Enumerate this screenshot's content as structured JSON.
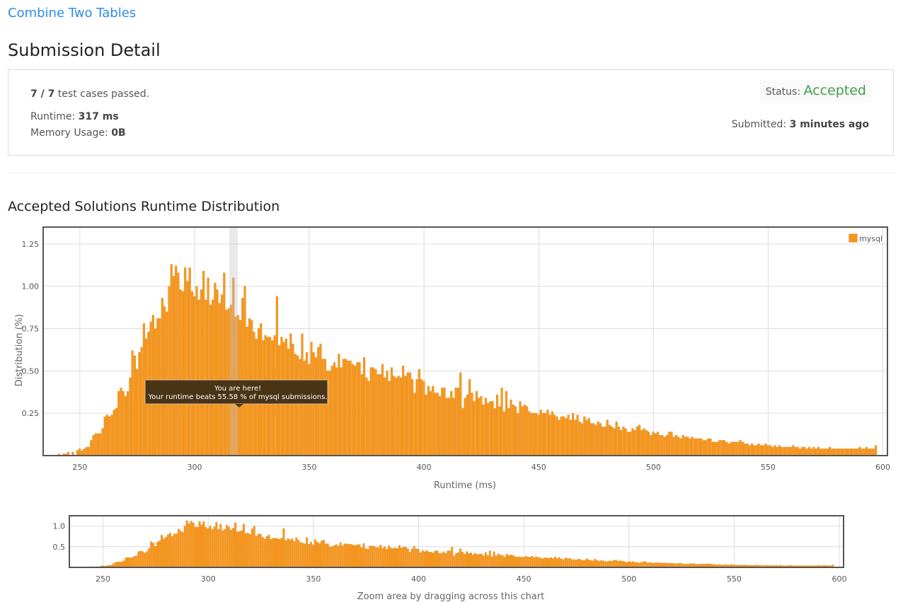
{
  "problem": {
    "title": "Combine Two Tables"
  },
  "page": {
    "title": "Submission Detail"
  },
  "summary": {
    "tests": "7 / 7",
    "tests_suffix": " test cases passed.",
    "runtime_label": "Runtime: ",
    "runtime_value": "317 ms",
    "memory_label": "Memory Usage: ",
    "memory_value": "0B",
    "status_label": "Status: ",
    "status_value": "Accepted",
    "submitted_label": "Submitted: ",
    "submitted_value": "3 minutes ago"
  },
  "section": {
    "title": "Accepted Solutions Runtime Distribution"
  },
  "colors": {
    "bar": "#f7981d",
    "bar_border": "#e8891a",
    "accent": "#2d8ce8",
    "accepted": "#43a047"
  },
  "chart_data": {
    "type": "bar",
    "xlabel": "Runtime (ms)",
    "ylabel": "Distribution (%)",
    "xlim": [
      234,
      602
    ],
    "ylim": [
      0,
      1.35
    ],
    "xticks": [
      250,
      300,
      350,
      400,
      450,
      500,
      550,
      600
    ],
    "yticks": [
      0.25,
      0.5,
      0.75,
      1.0,
      1.25
    ],
    "ytick_labels": [
      "0.25",
      "0.50",
      "0.75",
      "1.00",
      "1.25"
    ],
    "grid": true,
    "legend_position": "top-right",
    "series": [
      {
        "name": "mysql",
        "bin_start": 241,
        "bin_width": 1,
        "values": [
          0.01,
          0.0,
          0.01,
          0.01,
          0.02,
          0.0,
          0.02,
          0.0,
          0.03,
          0.04,
          0.03,
          0.04,
          0.05,
          0.05,
          0.09,
          0.12,
          0.13,
          0.13,
          0.13,
          0.16,
          0.23,
          0.24,
          0.23,
          0.24,
          0.27,
          0.28,
          0.38,
          0.4,
          0.38,
          0.35,
          0.38,
          0.46,
          0.62,
          0.59,
          0.51,
          0.61,
          0.64,
          0.78,
          0.69,
          0.73,
          0.79,
          0.83,
          0.75,
          0.81,
          0.81,
          0.93,
          0.88,
          0.85,
          1.0,
          1.13,
          1.06,
          1.12,
          1.08,
          0.98,
          0.97,
          1.11,
          1.03,
          1.11,
          0.97,
          0.94,
          1.0,
          0.92,
          0.98,
          1.09,
          0.92,
          1.05,
          0.89,
          0.92,
          1.02,
          0.98,
          0.9,
          0.95,
          1.08,
          0.86,
          0.87,
          0.89,
          1.05,
          0.82,
          0.83,
          0.8,
          0.93,
          1.0,
          0.76,
          0.81,
          0.8,
          0.73,
          0.69,
          0.75,
          0.78,
          0.68,
          0.71,
          0.7,
          0.7,
          0.68,
          0.71,
          0.94,
          0.65,
          0.7,
          0.67,
          0.69,
          0.63,
          0.72,
          0.66,
          0.6,
          0.59,
          0.57,
          0.72,
          0.56,
          0.61,
          0.54,
          0.67,
          0.61,
          0.58,
          0.64,
          0.66,
          0.57,
          0.57,
          0.5,
          0.5,
          0.53,
          0.55,
          0.52,
          0.6,
          0.52,
          0.57,
          0.57,
          0.56,
          0.56,
          0.54,
          0.53,
          0.55,
          0.55,
          0.48,
          0.58,
          0.46,
          0.44,
          0.52,
          0.52,
          0.51,
          0.48,
          0.48,
          0.54,
          0.46,
          0.5,
          0.44,
          0.52,
          0.47,
          0.46,
          0.47,
          0.46,
          0.53,
          0.47,
          0.49,
          0.49,
          0.45,
          0.37,
          0.45,
          0.51,
          0.45,
          0.44,
          0.36,
          0.41,
          0.38,
          0.41,
          0.37,
          0.37,
          0.35,
          0.4,
          0.4,
          0.34,
          0.34,
          0.38,
          0.34,
          0.4,
          0.4,
          0.49,
          0.28,
          0.34,
          0.36,
          0.45,
          0.37,
          0.32,
          0.38,
          0.34,
          0.35,
          0.3,
          0.34,
          0.31,
          0.32,
          0.32,
          0.28,
          0.36,
          0.29,
          0.4,
          0.26,
          0.38,
          0.28,
          0.33,
          0.3,
          0.29,
          0.25,
          0.32,
          0.29,
          0.3,
          0.29,
          0.26,
          0.25,
          0.25,
          0.25,
          0.24,
          0.27,
          0.25,
          0.25,
          0.27,
          0.24,
          0.26,
          0.24,
          0.23,
          0.21,
          0.23,
          0.23,
          0.22,
          0.24,
          0.21,
          0.25,
          0.21,
          0.24,
          0.2,
          0.19,
          0.23,
          0.21,
          0.22,
          0.19,
          0.19,
          0.18,
          0.2,
          0.19,
          0.17,
          0.17,
          0.21,
          0.18,
          0.17,
          0.16,
          0.2,
          0.17,
          0.15,
          0.17,
          0.16,
          0.14,
          0.14,
          0.16,
          0.15,
          0.17,
          0.18,
          0.15,
          0.16,
          0.15,
          0.14,
          0.12,
          0.14,
          0.13,
          0.14,
          0.12,
          0.12,
          0.11,
          0.12,
          0.14,
          0.14,
          0.11,
          0.12,
          0.11,
          0.1,
          0.12,
          0.11,
          0.11,
          0.1,
          0.11,
          0.1,
          0.1,
          0.1,
          0.1,
          0.09,
          0.09,
          0.1,
          0.1,
          0.08,
          0.08,
          0.08,
          0.09,
          0.09,
          0.09,
          0.08,
          0.07,
          0.08,
          0.08,
          0.08,
          0.08,
          0.09,
          0.08,
          0.07,
          0.07,
          0.06,
          0.07,
          0.06,
          0.06,
          0.07,
          0.06,
          0.06,
          0.07,
          0.06,
          0.06,
          0.05,
          0.06,
          0.05,
          0.06,
          0.05,
          0.05,
          0.05,
          0.05,
          0.05,
          0.06,
          0.05,
          0.05,
          0.04,
          0.05,
          0.05,
          0.04,
          0.05,
          0.04,
          0.05,
          0.04,
          0.05,
          0.04,
          0.04,
          0.04,
          0.04,
          0.05,
          0.04,
          0.04,
          0.04,
          0.04,
          0.04,
          0.04,
          0.04,
          0.04,
          0.04,
          0.04,
          0.04,
          0.04,
          0.05,
          0.04,
          0.04,
          0.05,
          0.04,
          0.04,
          0.04,
          0.06
        ]
      }
    ],
    "highlight_x": 317,
    "tooltip": {
      "line1": "You are here!",
      "line2": "Your runtime beats 55.58 % of mysql submissions."
    },
    "navigator": {
      "xticks": [
        250,
        300,
        350,
        400,
        450,
        500,
        550,
        600
      ],
      "yticks": [
        0.5,
        1.0
      ],
      "ytick_labels": [
        "0.5",
        "1.0"
      ],
      "label": "Zoom area by dragging across this chart"
    }
  }
}
